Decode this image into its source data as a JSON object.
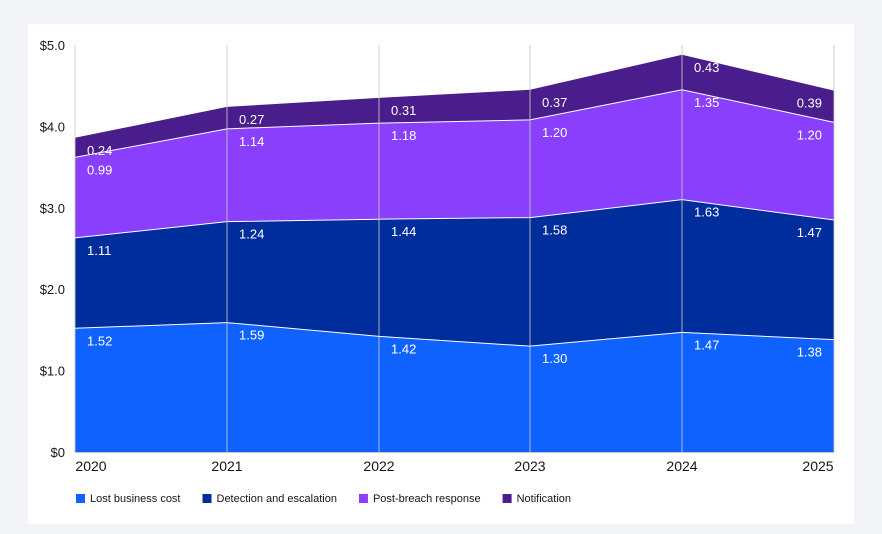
{
  "chart_data": {
    "type": "area",
    "stacked": true,
    "title": "",
    "xlabel": "",
    "ylabel": "",
    "x": [
      "2020",
      "2021",
      "2022",
      "2023",
      "2024",
      "2025"
    ],
    "ylim": [
      0,
      5
    ],
    "yticks": [
      0,
      1,
      2,
      3,
      4,
      5
    ],
    "ytick_labels": [
      "$0",
      "$1.0",
      "$2.0",
      "$3.0",
      "$4.0",
      "$5.0"
    ],
    "grid": {
      "horizontal": false,
      "vertical": true
    },
    "legend_position": "bottom-left",
    "series": [
      {
        "name": "Lost business cost",
        "color": "#0f62fe",
        "values": [
          1.52,
          1.59,
          1.42,
          1.3,
          1.47,
          1.38
        ],
        "labels": [
          "1.52",
          "1.59",
          "1.42",
          "1.30",
          "1.47",
          "1.38"
        ]
      },
      {
        "name": "Detection and escalation",
        "color": "#002d9c",
        "values": [
          1.11,
          1.24,
          1.44,
          1.58,
          1.63,
          1.47
        ],
        "labels": [
          "1.11",
          "1.24",
          "1.44",
          "1.58",
          "1.63",
          "1.47"
        ]
      },
      {
        "name": "Post-breach response",
        "color": "#8a3ffc",
        "values": [
          0.99,
          1.14,
          1.18,
          1.2,
          1.35,
          1.2
        ],
        "labels": [
          "0.99",
          "1.14",
          "1.18",
          "1.20",
          "1.35",
          "1.20"
        ]
      },
      {
        "name": "Notification",
        "color": "#491d8b",
        "values": [
          0.24,
          0.27,
          0.31,
          0.37,
          0.43,
          0.39
        ],
        "labels": [
          "0.24",
          "0.27",
          "0.31",
          "0.37",
          "0.43",
          "0.39"
        ]
      }
    ]
  }
}
